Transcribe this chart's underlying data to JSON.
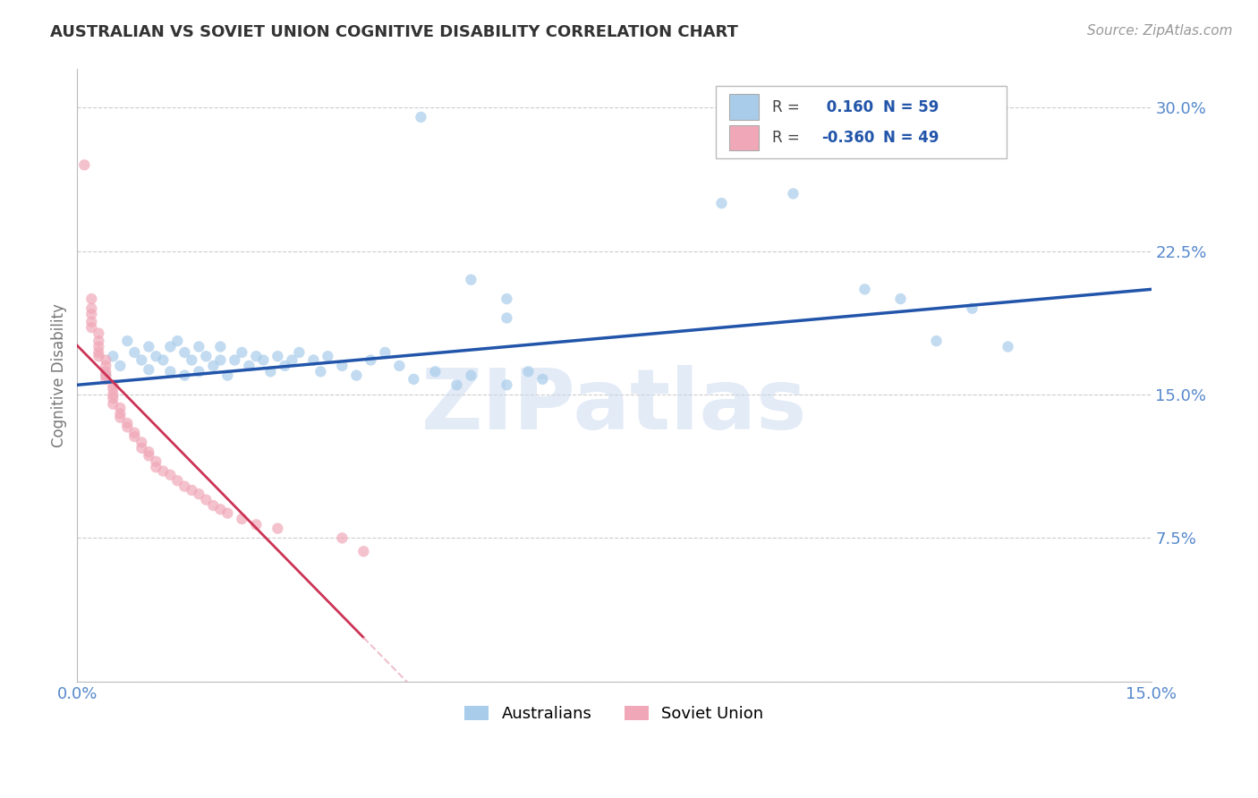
{
  "title": "AUSTRALIAN VS SOVIET UNION COGNITIVE DISABILITY CORRELATION CHART",
  "source": "Source: ZipAtlas.com",
  "ylabel": "Cognitive Disability",
  "watermark": "ZIPatlas",
  "xlim": [
    0.0,
    0.15
  ],
  "ylim": [
    0.0,
    0.32
  ],
  "xticks": [
    0.0,
    0.03,
    0.06,
    0.09,
    0.12,
    0.15
  ],
  "yticks": [
    0.0,
    0.075,
    0.15,
    0.225,
    0.3
  ],
  "ytick_labels": [
    "",
    "7.5%",
    "15.0%",
    "22.5%",
    "30.0%"
  ],
  "xtick_labels": [
    "0.0%",
    "",
    "",
    "",
    "",
    "15.0%"
  ],
  "aus_R": 0.16,
  "aus_N": 59,
  "sov_R": -0.36,
  "sov_N": 49,
  "aus_color": "#A8CCEA",
  "sov_color": "#F0A8B8",
  "aus_line_color": "#2255AA",
  "sov_line_color": "#CC3355",
  "sov_line_dashed_color": "#F0C0CC",
  "background_color": "#FFFFFF",
  "grid_color": "#CCCCCC",
  "title_color": "#333333",
  "axis_label_color": "#5588CC",
  "aus_points": [
    [
      0.004,
      0.16
    ],
    [
      0.005,
      0.17
    ],
    [
      0.006,
      0.165
    ],
    [
      0.007,
      0.178
    ],
    [
      0.008,
      0.172
    ],
    [
      0.009,
      0.168
    ],
    [
      0.01,
      0.163
    ],
    [
      0.01,
      0.175
    ],
    [
      0.011,
      0.17
    ],
    [
      0.012,
      0.168
    ],
    [
      0.013,
      0.175
    ],
    [
      0.013,
      0.162
    ],
    [
      0.014,
      0.178
    ],
    [
      0.015,
      0.172
    ],
    [
      0.015,
      0.16
    ],
    [
      0.016,
      0.168
    ],
    [
      0.017,
      0.175
    ],
    [
      0.017,
      0.162
    ],
    [
      0.018,
      0.17
    ],
    [
      0.019,
      0.165
    ],
    [
      0.02,
      0.168
    ],
    [
      0.02,
      0.175
    ],
    [
      0.021,
      0.16
    ],
    [
      0.022,
      0.168
    ],
    [
      0.023,
      0.172
    ],
    [
      0.024,
      0.165
    ],
    [
      0.025,
      0.17
    ],
    [
      0.026,
      0.168
    ],
    [
      0.027,
      0.162
    ],
    [
      0.028,
      0.17
    ],
    [
      0.029,
      0.165
    ],
    [
      0.03,
      0.168
    ],
    [
      0.031,
      0.172
    ],
    [
      0.033,
      0.168
    ],
    [
      0.034,
      0.162
    ],
    [
      0.035,
      0.17
    ],
    [
      0.037,
      0.165
    ],
    [
      0.039,
      0.16
    ],
    [
      0.041,
      0.168
    ],
    [
      0.043,
      0.172
    ],
    [
      0.045,
      0.165
    ],
    [
      0.047,
      0.158
    ],
    [
      0.05,
      0.162
    ],
    [
      0.053,
      0.155
    ],
    [
      0.055,
      0.16
    ],
    [
      0.06,
      0.155
    ],
    [
      0.063,
      0.162
    ],
    [
      0.065,
      0.158
    ],
    [
      0.048,
      0.295
    ],
    [
      0.055,
      0.21
    ],
    [
      0.06,
      0.2
    ],
    [
      0.06,
      0.19
    ],
    [
      0.09,
      0.25
    ],
    [
      0.1,
      0.255
    ],
    [
      0.11,
      0.205
    ],
    [
      0.115,
      0.2
    ],
    [
      0.12,
      0.178
    ],
    [
      0.125,
      0.195
    ],
    [
      0.13,
      0.175
    ]
  ],
  "sov_points": [
    [
      0.001,
      0.27
    ],
    [
      0.002,
      0.2
    ],
    [
      0.002,
      0.195
    ],
    [
      0.002,
      0.192
    ],
    [
      0.002,
      0.188
    ],
    [
      0.002,
      0.185
    ],
    [
      0.003,
      0.182
    ],
    [
      0.003,
      0.178
    ],
    [
      0.003,
      0.175
    ],
    [
      0.003,
      0.172
    ],
    [
      0.003,
      0.17
    ],
    [
      0.004,
      0.168
    ],
    [
      0.004,
      0.165
    ],
    [
      0.004,
      0.162
    ],
    [
      0.004,
      0.16
    ],
    [
      0.004,
      0.158
    ],
    [
      0.005,
      0.155
    ],
    [
      0.005,
      0.153
    ],
    [
      0.005,
      0.15
    ],
    [
      0.005,
      0.148
    ],
    [
      0.005,
      0.145
    ],
    [
      0.006,
      0.143
    ],
    [
      0.006,
      0.14
    ],
    [
      0.006,
      0.138
    ],
    [
      0.007,
      0.135
    ],
    [
      0.007,
      0.133
    ],
    [
      0.008,
      0.13
    ],
    [
      0.008,
      0.128
    ],
    [
      0.009,
      0.125
    ],
    [
      0.009,
      0.122
    ],
    [
      0.01,
      0.12
    ],
    [
      0.01,
      0.118
    ],
    [
      0.011,
      0.115
    ],
    [
      0.011,
      0.112
    ],
    [
      0.012,
      0.11
    ],
    [
      0.013,
      0.108
    ],
    [
      0.014,
      0.105
    ],
    [
      0.015,
      0.102
    ],
    [
      0.016,
      0.1
    ],
    [
      0.017,
      0.098
    ],
    [
      0.018,
      0.095
    ],
    [
      0.019,
      0.092
    ],
    [
      0.02,
      0.09
    ],
    [
      0.021,
      0.088
    ],
    [
      0.023,
      0.085
    ],
    [
      0.025,
      0.082
    ],
    [
      0.028,
      0.08
    ],
    [
      0.037,
      0.075
    ],
    [
      0.04,
      0.068
    ]
  ],
  "marker_size": 80,
  "marker_alpha": 0.7
}
